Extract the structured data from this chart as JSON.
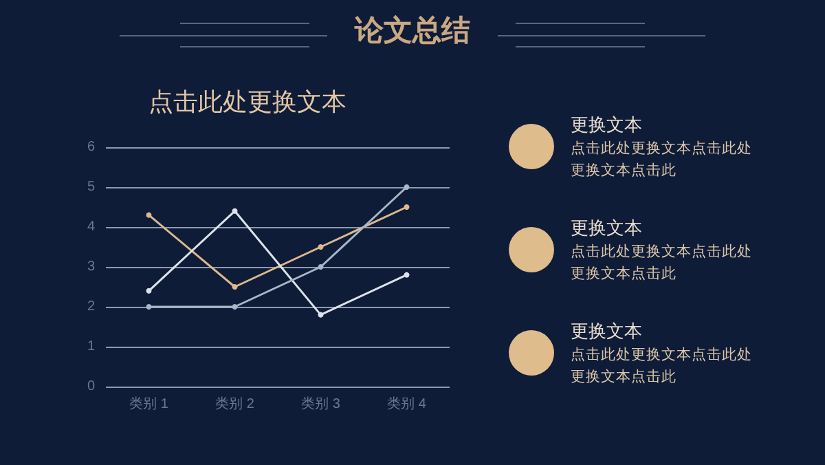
{
  "chart_data": {
    "type": "line",
    "title": "论文总结",
    "subtitle": "点击此处更换文本",
    "categories": [
      "类别 1",
      "类别 2",
      "类别 3",
      "类别 4"
    ],
    "series": [
      {
        "color": "#dcb98e",
        "values": [
          4.3,
          2.5,
          3.5,
          4.5
        ]
      },
      {
        "color": "#dde2ea",
        "values": [
          2.4,
          4.4,
          1.8,
          2.8
        ]
      },
      {
        "color": "#a9b6c6",
        "values": [
          2.0,
          2.0,
          3.0,
          5.0
        ]
      }
    ],
    "ylim": [
      0,
      6
    ],
    "yticks": [
      0,
      1,
      2,
      3,
      4,
      5,
      6
    ],
    "grid": "y",
    "marker": "circle",
    "line_style": "solid",
    "annotations": [
      "更换文本",
      "点击此处更换文本点击此处更换文本点击此",
      "更换文本",
      "点击此处更换文本点击此处更换文本点击此",
      "更换文本",
      "点击此处更换文本点击此处更换文本点击此"
    ]
  }
}
